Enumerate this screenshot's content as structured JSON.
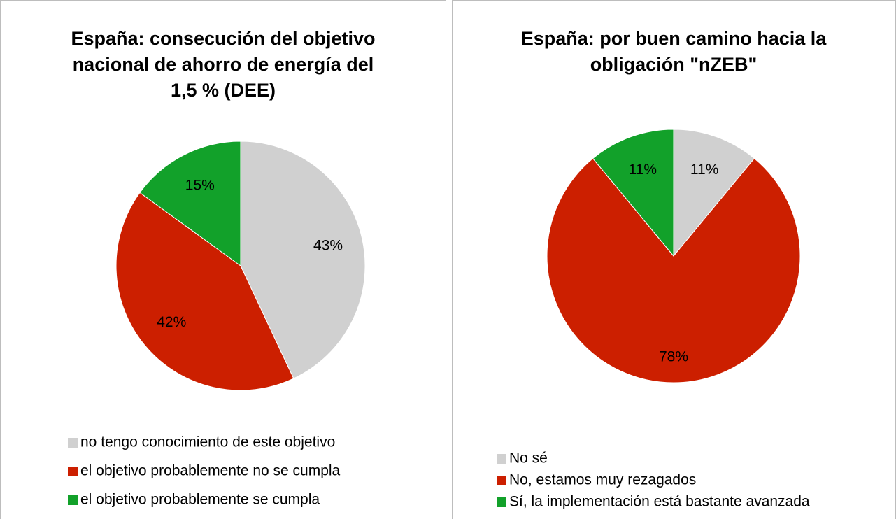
{
  "chart_data": [
    {
      "type": "pie",
      "title": [
        "España: consecución del objetivo",
        "nacional de ahorro de energía del",
        "1,5 % (DEE)"
      ],
      "categories": [
        "no tengo conocimiento de este objetivo",
        "el objetivo probablemente no se cumpla",
        "el objetivo probablemente se cumpla"
      ],
      "values": [
        43,
        42,
        15
      ],
      "value_labels": [
        "43%",
        "42%",
        "15%"
      ],
      "colors": [
        "#d0d0d0",
        "#cc1f00",
        "#12a12a"
      ]
    },
    {
      "type": "pie",
      "title": [
        "España: por buen camino hacia la",
        "obligación \"nZEB\""
      ],
      "categories": [
        "No sé",
        "No, estamos muy rezagados",
        "Sí, la implementación está bastante avanzada"
      ],
      "values": [
        11,
        78,
        11
      ],
      "value_labels": [
        "11%",
        "78%",
        "11%"
      ],
      "colors": [
        "#d0d0d0",
        "#cc1f00",
        "#12a12a"
      ]
    }
  ]
}
